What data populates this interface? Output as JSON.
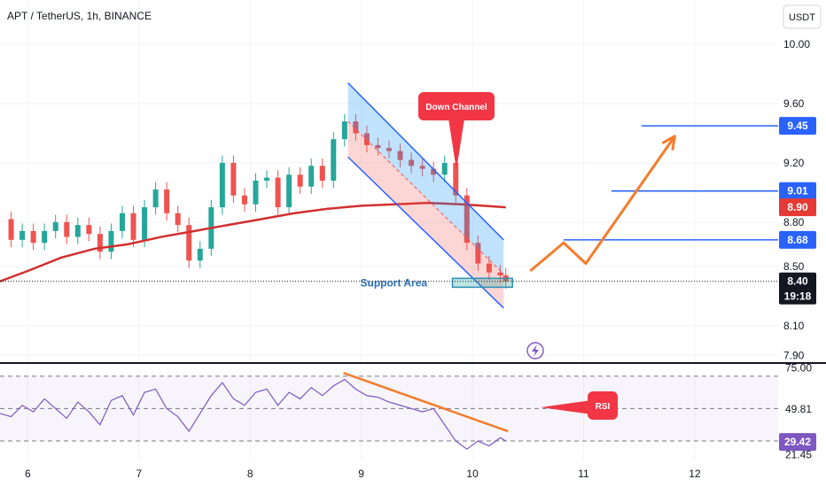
{
  "chart_data": {
    "type": "candlestick",
    "title": "APT / TetherUS, 1h, BINANCE",
    "currency": "USDT",
    "price_axis": {
      "ticks": [
        7.9,
        8.1,
        8.5,
        8.8,
        9.2,
        9.6,
        10.0
      ],
      "tick_labels": [
        "7.90",
        "8.10",
        "8.50",
        "8.80",
        "9.20",
        "9.60",
        "10.00"
      ],
      "range": [
        7.86,
        10.3
      ]
    },
    "time_axis": {
      "labels": [
        "6",
        "7",
        "8",
        "9",
        "10",
        "11",
        "12"
      ],
      "range": [
        5.75,
        12.75
      ]
    },
    "price_series": [
      [
        5.75,
        8.82
      ],
      [
        5.85,
        8.68
      ],
      [
        5.95,
        8.74
      ],
      [
        6.05,
        8.66
      ],
      [
        6.15,
        8.74
      ],
      [
        6.25,
        8.8
      ],
      [
        6.35,
        8.7
      ],
      [
        6.45,
        8.78
      ],
      [
        6.55,
        8.72
      ],
      [
        6.65,
        8.6
      ],
      [
        6.75,
        8.74
      ],
      [
        6.85,
        8.86
      ],
      [
        6.95,
        8.68
      ],
      [
        7.05,
        8.9
      ],
      [
        7.15,
        9.02
      ],
      [
        7.25,
        8.86
      ],
      [
        7.35,
        8.78
      ],
      [
        7.45,
        8.54
      ],
      [
        7.55,
        8.62
      ],
      [
        7.65,
        8.9
      ],
      [
        7.75,
        9.2
      ],
      [
        7.85,
        8.98
      ],
      [
        7.95,
        8.92
      ],
      [
        8.05,
        9.08
      ],
      [
        8.15,
        9.1
      ],
      [
        8.25,
        8.9
      ],
      [
        8.35,
        9.12
      ],
      [
        8.45,
        9.04
      ],
      [
        8.55,
        9.18
      ],
      [
        8.65,
        9.08
      ],
      [
        8.75,
        9.36
      ],
      [
        8.85,
        9.48
      ],
      [
        8.95,
        9.4
      ],
      [
        9.05,
        9.32
      ],
      [
        9.15,
        9.3
      ],
      [
        9.25,
        9.28
      ],
      [
        9.35,
        9.22
      ],
      [
        9.45,
        9.18
      ],
      [
        9.55,
        9.16
      ],
      [
        9.65,
        9.12
      ],
      [
        9.75,
        9.2
      ],
      [
        9.85,
        8.98
      ],
      [
        9.95,
        8.66
      ],
      [
        10.05,
        8.52
      ],
      [
        10.15,
        8.46
      ],
      [
        10.25,
        8.44
      ],
      [
        10.3,
        8.4
      ]
    ],
    "moving_average": [
      [
        5.75,
        8.4
      ],
      [
        6.0,
        8.47
      ],
      [
        6.3,
        8.56
      ],
      [
        6.6,
        8.62
      ],
      [
        6.9,
        8.65
      ],
      [
        7.2,
        8.7
      ],
      [
        7.5,
        8.74
      ],
      [
        7.8,
        8.78
      ],
      [
        8.1,
        8.82
      ],
      [
        8.4,
        8.86
      ],
      [
        8.7,
        8.89
      ],
      [
        9.0,
        8.91
      ],
      [
        9.3,
        8.92
      ],
      [
        9.6,
        8.93
      ],
      [
        9.9,
        8.92
      ],
      [
        10.1,
        8.91
      ],
      [
        10.3,
        8.9
      ]
    ],
    "down_channel": {
      "upper": [
        [
          8.88,
          9.74
        ],
        [
          10.28,
          8.68
        ]
      ],
      "lower": [
        [
          8.88,
          9.24
        ],
        [
          10.28,
          8.22
        ]
      ],
      "mid": [
        [
          8.88,
          9.48
        ],
        [
          10.28,
          8.45
        ]
      ]
    },
    "support_area": {
      "label": "Support Area",
      "price_low": 8.36,
      "price_high": 8.42,
      "time_start": 9.82,
      "time_end": 10.36
    },
    "down_channel_label": "Down Channel",
    "projection_path": [
      [
        10.52,
        8.47
      ],
      [
        10.82,
        8.66
      ],
      [
        11.02,
        8.52
      ],
      [
        11.82,
        9.38
      ]
    ],
    "levels": [
      {
        "price": 9.45,
        "label": "9.45",
        "color": "#2962ff",
        "time_start": 11.52
      },
      {
        "price": 9.01,
        "label": "9.01",
        "color": "#2962ff",
        "time_start": 11.25
      },
      {
        "price": 8.68,
        "label": "8.68",
        "color": "#2962ff",
        "time_start": 10.82
      }
    ],
    "current_price": {
      "value": 8.4,
      "label": "8.40",
      "timer": "19:18"
    },
    "ma_badge": {
      "value": 8.9,
      "label": "8.90",
      "color": "#e53935"
    },
    "rsi": {
      "label": "RSI",
      "ticks": [
        75.0,
        49.81,
        29.42,
        21.45
      ],
      "tick_labels": [
        "75.00",
        "49.81",
        "29.42",
        "21.45"
      ],
      "range": [
        18,
        77
      ],
      "dashed_levels": [
        70,
        50,
        30
      ],
      "series": [
        [
          5.75,
          47
        ],
        [
          5.85,
          45
        ],
        [
          5.95,
          52
        ],
        [
          6.05,
          48
        ],
        [
          6.15,
          56
        ],
        [
          6.25,
          50
        ],
        [
          6.35,
          44
        ],
        [
          6.45,
          54
        ],
        [
          6.55,
          48
        ],
        [
          6.65,
          40
        ],
        [
          6.75,
          55
        ],
        [
          6.85,
          58
        ],
        [
          6.95,
          46
        ],
        [
          7.05,
          60
        ],
        [
          7.15,
          62
        ],
        [
          7.25,
          50
        ],
        [
          7.35,
          45
        ],
        [
          7.45,
          36
        ],
        [
          7.55,
          47
        ],
        [
          7.65,
          58
        ],
        [
          7.75,
          66
        ],
        [
          7.85,
          56
        ],
        [
          7.95,
          52
        ],
        [
          8.05,
          60
        ],
        [
          8.15,
          62
        ],
        [
          8.25,
          52
        ],
        [
          8.35,
          60
        ],
        [
          8.45,
          56
        ],
        [
          8.55,
          63
        ],
        [
          8.65,
          58
        ],
        [
          8.75,
          64
        ],
        [
          8.85,
          68
        ],
        [
          8.95,
          62
        ],
        [
          9.05,
          58
        ],
        [
          9.15,
          57
        ],
        [
          9.25,
          54
        ],
        [
          9.35,
          52
        ],
        [
          9.45,
          50
        ],
        [
          9.55,
          48
        ],
        [
          9.65,
          50
        ],
        [
          9.75,
          40
        ],
        [
          9.85,
          30
        ],
        [
          9.95,
          25
        ],
        [
          10.05,
          30
        ],
        [
          10.15,
          27
        ],
        [
          10.25,
          32
        ],
        [
          10.3,
          30
        ]
      ],
      "trendline": [
        [
          8.84,
          72
        ],
        [
          10.32,
          36
        ]
      ],
      "current_badge": {
        "value": 29.42,
        "label": "29.42"
      }
    }
  }
}
